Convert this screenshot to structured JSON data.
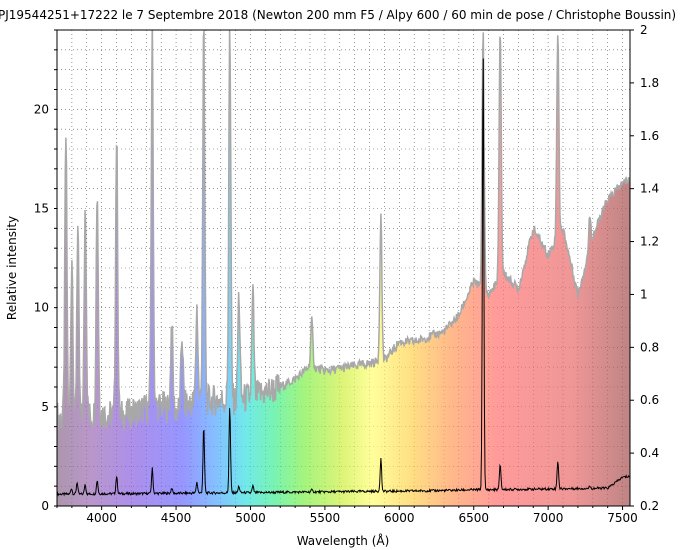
{
  "chart_data": {
    "type": "area",
    "title": "PJ19544251+17222  le 7 Septembre 2018 (Newton 200 mm F5 / Alpy 600 / 60 min de pose / Christophe Boussin)",
    "xlabel": "Wavelength (Å)",
    "ylabel": "Relative intensity",
    "xlim": [
      3700,
      7550
    ],
    "ylim_left": [
      0,
      24
    ],
    "ylim_right": [
      0.2,
      2.0
    ],
    "x_ticks": [
      4000,
      4500,
      5000,
      5500,
      6000,
      6500,
      7000,
      7500
    ],
    "y_ticks_left": [
      0,
      5,
      10,
      15,
      20
    ],
    "y_ticks_right": [
      0.2,
      0.4,
      0.6,
      0.8,
      1,
      1.2,
      1.4,
      1.6,
      1.8,
      2
    ],
    "grid": true,
    "series": [
      {
        "axis": "right",
        "style": "gray outline with rainbow fill",
        "continuum": [
          [
            3700,
            0.54
          ],
          [
            3800,
            0.52
          ],
          [
            3900,
            0.54
          ],
          [
            4000,
            0.55
          ],
          [
            4100,
            0.54
          ],
          [
            4200,
            0.55
          ],
          [
            4300,
            0.57
          ],
          [
            4400,
            0.58
          ],
          [
            4500,
            0.56
          ],
          [
            4600,
            0.59
          ],
          [
            4700,
            0.6
          ],
          [
            4800,
            0.6
          ],
          [
            4900,
            0.6
          ],
          [
            5000,
            0.61
          ],
          [
            5100,
            0.63
          ],
          [
            5200,
            0.65
          ],
          [
            5300,
            0.68
          ],
          [
            5400,
            0.73
          ],
          [
            5500,
            0.71
          ],
          [
            5600,
            0.72
          ],
          [
            5700,
            0.73
          ],
          [
            5800,
            0.74
          ],
          [
            5900,
            0.75
          ],
          [
            6000,
            0.82
          ],
          [
            6100,
            0.82
          ],
          [
            6200,
            0.84
          ],
          [
            6300,
            0.86
          ],
          [
            6400,
            0.92
          ],
          [
            6500,
            1.05
          ],
          [
            6600,
            1.0
          ],
          [
            6700,
            1.08
          ],
          [
            6800,
            1.02
          ],
          [
            6900,
            1.25
          ],
          [
            7000,
            1.15
          ],
          [
            7100,
            1.25
          ],
          [
            7200,
            1.0
          ],
          [
            7300,
            1.22
          ],
          [
            7400,
            1.36
          ],
          [
            7500,
            1.42
          ],
          [
            7550,
            1.44
          ]
        ],
        "lines": [
          [
            3760,
            1.6
          ],
          [
            3800,
            1.15
          ],
          [
            3840,
            1.25
          ],
          [
            3890,
            1.35
          ],
          [
            3970,
            1.4
          ],
          [
            4101,
            1.6
          ],
          [
            4340,
            2.0
          ],
          [
            4471,
            0.9
          ],
          [
            4540,
            0.85
          ],
          [
            4640,
            0.95
          ],
          [
            4686,
            2.0
          ],
          [
            4861,
            2.0
          ],
          [
            4922,
            1.0
          ],
          [
            5016,
            1.0
          ],
          [
            5412,
            0.9
          ],
          [
            5876,
            1.3
          ],
          [
            6563,
            2.0
          ],
          [
            6678,
            2.0
          ],
          [
            7065,
            2.0
          ],
          [
            7281,
            1.3
          ]
        ]
      },
      {
        "axis": "left",
        "style": "black line",
        "continuum": [
          [
            3700,
            0.6
          ],
          [
            3800,
            0.6
          ],
          [
            3900,
            0.6
          ],
          [
            4000,
            0.62
          ],
          [
            4100,
            0.62
          ],
          [
            4200,
            0.62
          ],
          [
            4300,
            0.63
          ],
          [
            4400,
            0.64
          ],
          [
            4500,
            0.64
          ],
          [
            4600,
            0.65
          ],
          [
            4700,
            0.66
          ],
          [
            4800,
            0.66
          ],
          [
            4900,
            0.67
          ],
          [
            5000,
            0.67
          ],
          [
            5100,
            0.68
          ],
          [
            5200,
            0.69
          ],
          [
            5300,
            0.7
          ],
          [
            5400,
            0.71
          ],
          [
            5500,
            0.71
          ],
          [
            5600,
            0.72
          ],
          [
            5700,
            0.73
          ],
          [
            5800,
            0.74
          ],
          [
            5900,
            0.74
          ],
          [
            6000,
            0.75
          ],
          [
            6100,
            0.76
          ],
          [
            6200,
            0.77
          ],
          [
            6300,
            0.78
          ],
          [
            6400,
            0.8
          ],
          [
            6500,
            0.82
          ],
          [
            6600,
            0.82
          ],
          [
            6700,
            0.83
          ],
          [
            6800,
            0.84
          ],
          [
            6900,
            0.85
          ],
          [
            7000,
            0.86
          ],
          [
            7100,
            0.87
          ],
          [
            7200,
            0.88
          ],
          [
            7300,
            0.89
          ],
          [
            7400,
            0.9
          ],
          [
            7500,
            1.45
          ],
          [
            7550,
            1.5
          ]
        ],
        "lines": [
          [
            3797,
            0.9
          ],
          [
            3835,
            1.2
          ],
          [
            3889,
            1.1
          ],
          [
            3970,
            1.3
          ],
          [
            4101,
            1.5
          ],
          [
            4340,
            1.9
          ],
          [
            4471,
            0.9
          ],
          [
            4640,
            1.2
          ],
          [
            4686,
            4.0
          ],
          [
            4861,
            5.0
          ],
          [
            4922,
            1.0
          ],
          [
            5016,
            1.0
          ],
          [
            5412,
            0.8
          ],
          [
            5876,
            2.4
          ],
          [
            6563,
            23.0
          ],
          [
            6678,
            2.1
          ],
          [
            7065,
            2.3
          ],
          [
            7281,
            1.0
          ]
        ]
      }
    ]
  }
}
